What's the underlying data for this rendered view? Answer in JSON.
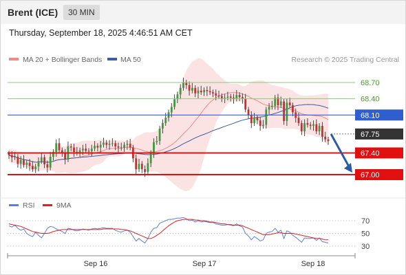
{
  "header": {
    "title": "Brent (ICE)",
    "timeframe": "30 MIN",
    "timestamp": "Thursday, September 18, 2025 4:46:51 AM CET"
  },
  "legend": {
    "ma20": {
      "label": "MA 20 + Bollinger Bands",
      "color": "#f08a8a"
    },
    "ma50": {
      "label": "MA 50",
      "color": "#3a5fa0"
    }
  },
  "credit": "Research © 2025 Trading Central",
  "rsi_legend": {
    "rsi": {
      "label": "RSI",
      "color": "#5b7fd6"
    },
    "ma9": {
      "label": "9MA",
      "color": "#e02020"
    }
  },
  "colors": {
    "up": "#3f9a3f",
    "down": "#c23030",
    "resistance": "#8cc97a",
    "support": "#e01010",
    "pivot": "#2f5fcf",
    "current": "#333333",
    "bollinger_fill": "#fbdada",
    "arrow": "#2a5aa8"
  },
  "chart_data": {
    "type": "candlestick",
    "x_ticks": [
      "Sep 16",
      "Sep 17",
      "Sep 18"
    ],
    "y_range": [
      66.8,
      69.0
    ],
    "levels": [
      {
        "label": "68.70",
        "value": 68.7,
        "kind": "resistance"
      },
      {
        "label": "68.40",
        "value": 68.4,
        "kind": "resistance"
      },
      {
        "label": "68.10",
        "value": 68.1,
        "kind": "pivot"
      },
      {
        "label": "67.75",
        "value": 67.75,
        "kind": "current"
      },
      {
        "label": "67.40",
        "value": 67.4,
        "kind": "support"
      },
      {
        "label": "67.00",
        "value": 67.0,
        "kind": "support"
      }
    ],
    "forecast_arrow": {
      "from": 67.75,
      "to": 67.0
    },
    "closes": [
      67.36,
      67.32,
      67.33,
      67.2,
      67.27,
      67.18,
      67.22,
      67.16,
      67.1,
      67.15,
      67.25,
      67.32,
      67.19,
      67.13,
      67.33,
      67.42,
      67.58,
      67.45,
      67.4,
      67.28,
      67.52,
      67.5,
      67.42,
      67.4,
      67.45,
      67.48,
      67.44,
      67.43,
      67.48,
      67.53,
      67.5,
      67.55,
      67.59,
      67.55,
      67.57,
      67.58,
      67.52,
      67.5,
      67.49,
      67.55,
      67.57,
      67.5,
      67.3,
      67.1,
      67.2,
      67.1,
      67.05,
      67.21,
      67.4,
      67.6,
      67.62,
      67.85,
      67.95,
      68.05,
      68.15,
      68.25,
      68.39,
      68.48,
      68.6,
      68.7,
      68.65,
      68.55,
      68.6,
      68.5,
      68.55,
      68.52,
      68.56,
      68.54,
      68.52,
      68.5,
      68.46,
      68.45,
      68.41,
      68.42,
      68.44,
      68.42,
      68.4,
      68.47,
      68.43,
      68.4,
      68.2,
      68.1,
      67.95,
      68.05,
      68.0,
      67.9,
      67.92,
      68.2,
      68.25,
      68.27,
      68.42,
      68.28,
      68.35,
      67.99,
      68.33,
      68.28,
      68.15,
      68.05,
      67.95,
      67.8,
      67.95,
      67.92,
      67.9,
      67.93,
      67.8,
      67.9,
      67.7,
      67.65,
      67.62
    ],
    "rsi": {
      "ticks": [
        70,
        50,
        30
      ],
      "values": [
        62,
        60,
        63,
        58,
        55,
        57,
        50,
        47,
        45,
        52,
        47,
        43,
        50,
        58,
        61,
        60,
        57,
        55,
        53,
        50,
        58,
        57,
        55,
        54,
        55,
        57,
        56,
        55,
        57,
        58,
        57,
        58,
        59,
        58,
        58,
        58,
        55,
        53,
        52,
        54,
        55,
        52,
        45,
        38,
        42,
        38,
        35,
        42,
        52,
        58,
        59,
        66,
        68,
        70,
        72,
        72,
        73,
        74,
        74,
        75,
        73,
        70,
        71,
        68,
        70,
        68,
        69,
        68,
        67,
        67,
        65,
        64,
        63,
        63,
        64,
        63,
        62,
        65,
        62,
        60,
        50,
        46,
        40,
        45,
        42,
        38,
        40,
        50,
        52,
        53,
        58,
        52,
        55,
        42,
        54,
        52,
        47,
        44,
        40,
        36,
        43,
        42,
        42,
        43,
        39,
        43,
        37,
        36,
        35
      ],
      "ma9": [
        65,
        64,
        63,
        62,
        61,
        59,
        57,
        55,
        53,
        52,
        51,
        50,
        50,
        50,
        51,
        53,
        54,
        55,
        56,
        56,
        56,
        56,
        56,
        56,
        56,
        56,
        56,
        56,
        56,
        56,
        56,
        56,
        57,
        57,
        57,
        57,
        57,
        57,
        56,
        56,
        55,
        54,
        52,
        50,
        48,
        46,
        44,
        42,
        42,
        44,
        47,
        50,
        54,
        58,
        62,
        65,
        68,
        70,
        71,
        72,
        72,
        72,
        72,
        71,
        71,
        70,
        70,
        69,
        68,
        68,
        67,
        66,
        65,
        65,
        64,
        64,
        63,
        63,
        63,
        62,
        60,
        58,
        56,
        54,
        52,
        50,
        48,
        48,
        48,
        49,
        50,
        51,
        51,
        50,
        50,
        50,
        50,
        49,
        48,
        47,
        46,
        45,
        44,
        43,
        42,
        42,
        41,
        40,
        40
      ]
    }
  }
}
